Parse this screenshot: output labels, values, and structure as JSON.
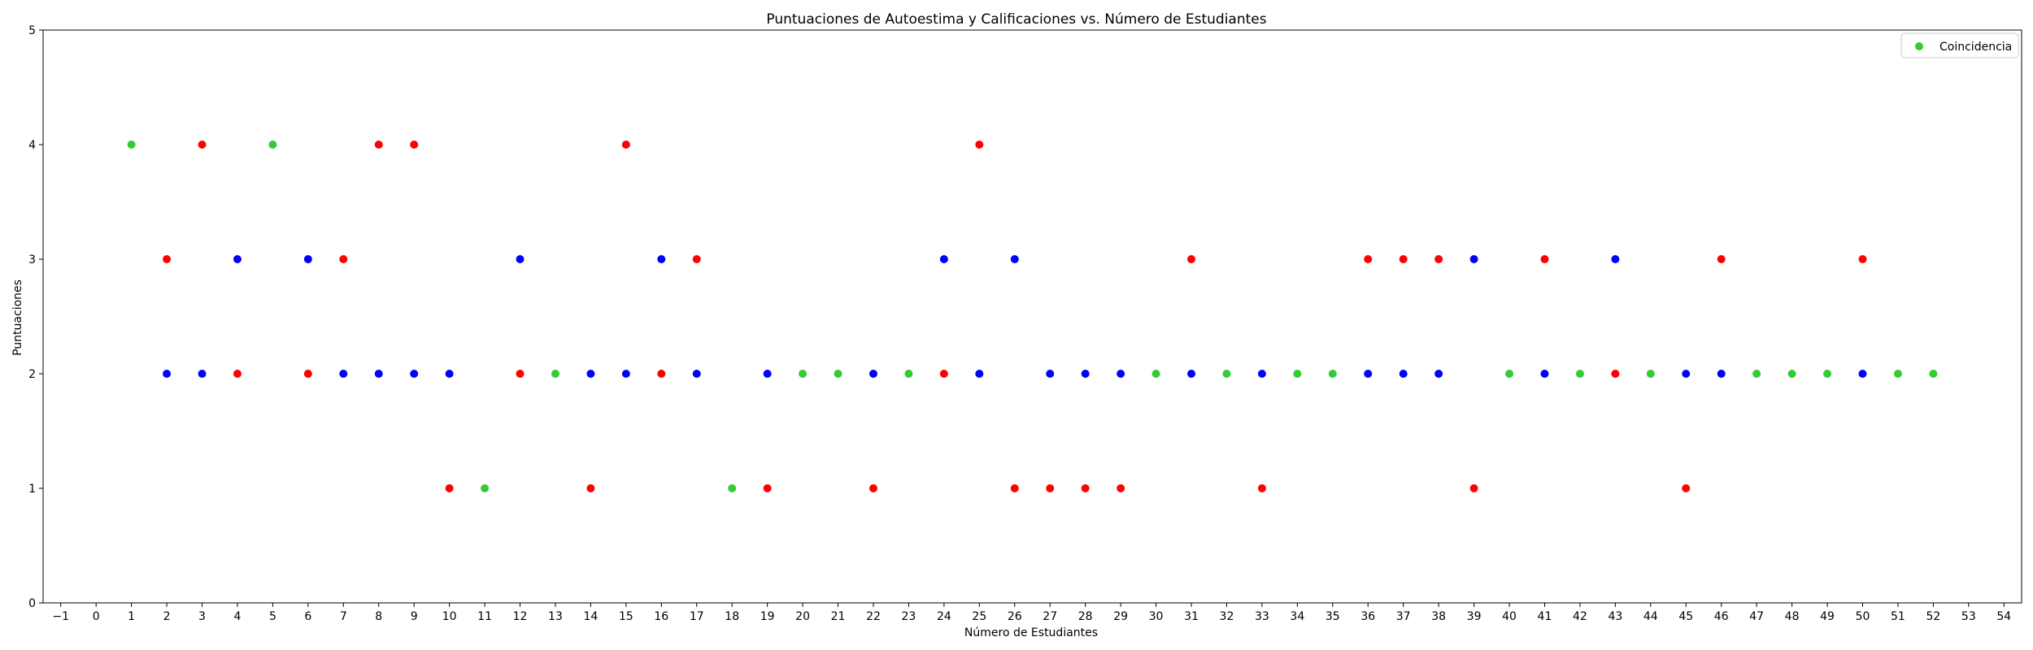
{
  "chart_data": {
    "type": "scatter",
    "title": "Puntuaciones de Autoestima y Calificaciones vs. Número de Estudiantes",
    "xlabel": "Número de Estudiantes",
    "ylabel": "Puntuaciones",
    "xlim": [
      -1.5,
      54.5
    ],
    "ylim": [
      0,
      5
    ],
    "xticks": [
      -1,
      0,
      1,
      2,
      3,
      4,
      5,
      6,
      7,
      8,
      9,
      10,
      11,
      12,
      13,
      14,
      15,
      16,
      17,
      18,
      19,
      20,
      21,
      22,
      23,
      24,
      25,
      26,
      27,
      28,
      29,
      30,
      31,
      32,
      33,
      34,
      35,
      36,
      37,
      38,
      39,
      40,
      41,
      42,
      43,
      44,
      45,
      46,
      47,
      48,
      49,
      50,
      51,
      52,
      53,
      54
    ],
    "yticks": [
      0,
      1,
      2,
      3,
      4,
      5
    ],
    "grid": false,
    "legend": {
      "placement": "top-right",
      "entries": [
        "Coincidencia"
      ]
    },
    "series": [
      {
        "name": "Coincidencia",
        "color": "#33cc33",
        "points": [
          [
            1,
            4
          ],
          [
            5,
            4
          ],
          [
            11,
            1
          ],
          [
            13,
            2
          ],
          [
            18,
            1
          ],
          [
            20,
            2
          ],
          [
            21,
            2
          ],
          [
            23,
            2
          ],
          [
            30,
            2
          ],
          [
            32,
            2
          ],
          [
            34,
            2
          ],
          [
            35,
            2
          ],
          [
            40,
            2
          ],
          [
            42,
            2
          ],
          [
            44,
            2
          ],
          [
            47,
            2
          ],
          [
            48,
            2
          ],
          [
            49,
            2
          ],
          [
            51,
            2
          ],
          [
            52,
            2
          ]
        ]
      },
      {
        "color": "#ff0000",
        "points": [
          [
            2,
            3
          ],
          [
            3,
            4
          ],
          [
            4,
            2
          ],
          [
            6,
            2
          ],
          [
            7,
            3
          ],
          [
            8,
            4
          ],
          [
            9,
            4
          ],
          [
            10,
            1
          ],
          [
            12,
            2
          ],
          [
            14,
            1
          ],
          [
            15,
            4
          ],
          [
            16,
            2
          ],
          [
            17,
            3
          ],
          [
            19,
            1
          ],
          [
            22,
            1
          ],
          [
            24,
            2
          ],
          [
            25,
            4
          ],
          [
            26,
            1
          ],
          [
            27,
            1
          ],
          [
            28,
            1
          ],
          [
            29,
            1
          ],
          [
            31,
            3
          ],
          [
            33,
            1
          ],
          [
            36,
            3
          ],
          [
            37,
            3
          ],
          [
            38,
            3
          ],
          [
            39,
            1
          ],
          [
            41,
            3
          ],
          [
            43,
            2
          ],
          [
            45,
            1
          ],
          [
            46,
            3
          ],
          [
            50,
            3
          ]
        ]
      },
      {
        "color": "#0000ff",
        "points": [
          [
            2,
            2
          ],
          [
            3,
            2
          ],
          [
            4,
            3
          ],
          [
            6,
            3
          ],
          [
            7,
            2
          ],
          [
            8,
            2
          ],
          [
            9,
            2
          ],
          [
            10,
            2
          ],
          [
            12,
            3
          ],
          [
            14,
            2
          ],
          [
            15,
            2
          ],
          [
            16,
            3
          ],
          [
            17,
            2
          ],
          [
            19,
            2
          ],
          [
            22,
            2
          ],
          [
            24,
            3
          ],
          [
            25,
            2
          ],
          [
            26,
            3
          ],
          [
            27,
            2
          ],
          [
            28,
            2
          ],
          [
            29,
            2
          ],
          [
            31,
            2
          ],
          [
            33,
            2
          ],
          [
            36,
            2
          ],
          [
            37,
            2
          ],
          [
            38,
            2
          ],
          [
            39,
            3
          ],
          [
            41,
            2
          ],
          [
            43,
            3
          ],
          [
            45,
            2
          ],
          [
            46,
            2
          ],
          [
            50,
            2
          ]
        ]
      }
    ]
  }
}
